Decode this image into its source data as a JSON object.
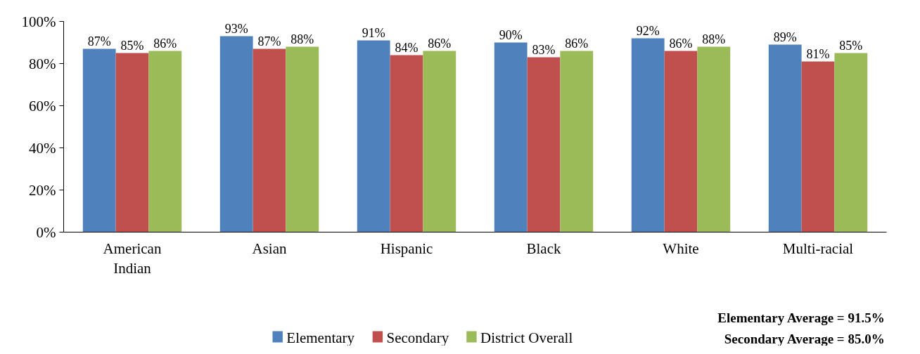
{
  "chart_data": {
    "type": "bar",
    "categories": [
      "American Indian",
      "Asian",
      "Hispanic",
      "Black",
      "White",
      "Multi-racial"
    ],
    "series": [
      {
        "name": "Elementary",
        "color": "#4f81bd",
        "values": [
          87,
          93,
          91,
          90,
          92,
          89
        ],
        "value_labels": [
          "87%",
          "93%",
          "91%",
          "90%",
          "92%",
          "89%"
        ]
      },
      {
        "name": "Secondary",
        "color": "#c0504d",
        "values": [
          85,
          87,
          84,
          83,
          86,
          81
        ],
        "value_labels": [
          "85%",
          "87%",
          "84%",
          "83%",
          "86%",
          "81%"
        ]
      },
      {
        "name": "District Overall",
        "color": "#9bbb59",
        "values": [
          86,
          88,
          86,
          86,
          88,
          85
        ],
        "value_labels": [
          "86%",
          "88%",
          "86%",
          "86%",
          "88%",
          "85%"
        ]
      }
    ],
    "ylim": [
      0,
      100
    ],
    "yticks": [
      {
        "value": 0,
        "label": "0%"
      },
      {
        "value": 20,
        "label": "20%"
      },
      {
        "value": 40,
        "label": "40%"
      },
      {
        "value": 60,
        "label": "60%"
      },
      {
        "value": 80,
        "label": "80%"
      },
      {
        "value": 100,
        "label": "100%"
      }
    ],
    "grid": false,
    "legend": "bottom",
    "annotations": [
      "Elementary Average = 91.5%",
      "Secondary Average = 85.0%"
    ]
  }
}
